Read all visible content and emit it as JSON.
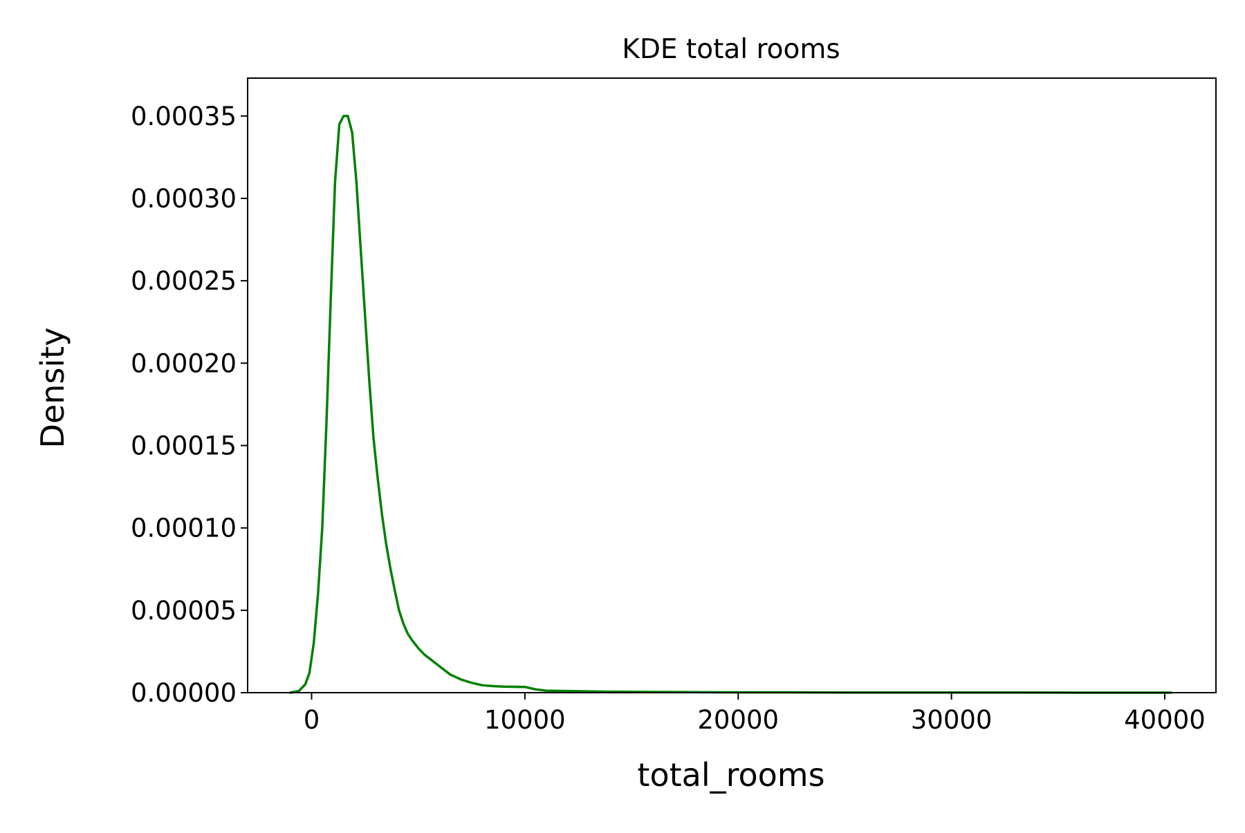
{
  "chart_data": {
    "type": "line",
    "title": "KDE total rooms",
    "xlabel": "total_rooms",
    "ylabel": "Density",
    "xlim": [
      -3000,
      42400
    ],
    "ylim": [
      0,
      0.000373
    ],
    "grid": false,
    "legend": "none",
    "line_color": "#008000",
    "x_ticks": [
      0,
      10000,
      20000,
      30000,
      40000
    ],
    "x_tick_labels": [
      "0",
      "10000",
      "20000",
      "30000",
      "40000"
    ],
    "y_ticks": [
      0,
      5e-05,
      0.0001,
      0.00015,
      0.0002,
      0.00025,
      0.0003,
      0.00035
    ],
    "y_tick_labels": [
      "0.00000",
      "0.00005",
      "0.00010",
      "0.00015",
      "0.00020",
      "0.00025",
      "0.00030",
      "0.00035"
    ],
    "series": [
      {
        "x": [
          -1000,
          -600,
          -300,
          -100,
          100,
          300,
          500,
          700,
          900,
          1100,
          1300,
          1500,
          1700,
          1900,
          2100,
          2300,
          2500,
          2700,
          2900,
          3100,
          3300,
          3500,
          3700,
          3900,
          4100,
          4300,
          4500,
          4700,
          5000,
          5300,
          5600,
          6000,
          6500,
          7000,
          7500,
          8000,
          8500,
          9000,
          10000,
          10500,
          11000,
          12000,
          13000,
          14000,
          15000,
          16000,
          18000,
          20000,
          22000,
          25000,
          28000,
          30000,
          33000,
          36000,
          40300
        ],
        "y": [
          0,
          1e-06,
          5e-06,
          1.2e-05,
          3e-05,
          6e-05,
          0.0001,
          0.000165,
          0.00024,
          0.00031,
          0.000345,
          0.00035,
          0.00035,
          0.00034,
          0.00031,
          0.00027,
          0.00023,
          0.00019,
          0.000155,
          0.00013,
          0.000108,
          9e-05,
          7.5e-05,
          6.2e-05,
          5e-05,
          4.2e-05,
          3.6e-05,
          3.2e-05,
          2.7e-05,
          2.3e-05,
          2e-05,
          1.6e-05,
          1.1e-05,
          8e-06,
          6e-06,
          4.5e-06,
          4e-06,
          3.7e-06,
          3.5e-06,
          2e-06,
          1.2e-06,
          1e-06,
          8e-07,
          6e-07,
          5e-07,
          4e-07,
          3e-07,
          2e-07,
          2e-07,
          1e-07,
          1e-07,
          1e-07,
          1e-07,
          0,
          0
        ]
      }
    ]
  }
}
